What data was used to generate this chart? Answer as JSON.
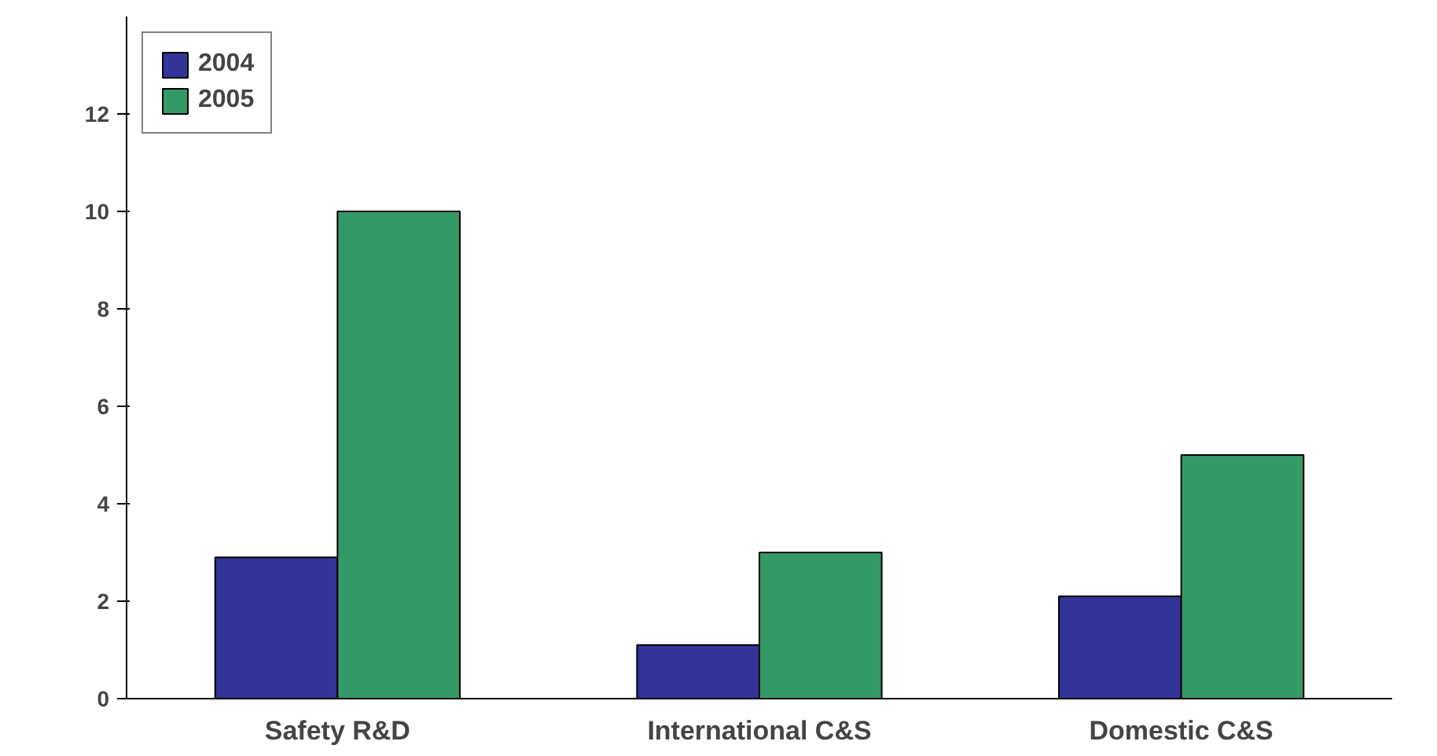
{
  "chart_data": {
    "type": "bar",
    "categories": [
      "Safety R&D",
      "International C&S",
      "Domestic C&S"
    ],
    "series": [
      {
        "name": "2004",
        "color": "#333399",
        "values": [
          2.9,
          1.1,
          2.1
        ]
      },
      {
        "name": "2005",
        "color": "#339966",
        "values": [
          10,
          3,
          5
        ]
      }
    ],
    "ylim": [
      0,
      14
    ],
    "yticks": [
      0,
      2,
      4,
      6,
      8,
      10,
      12
    ],
    "grid": false,
    "legend": "top left"
  }
}
